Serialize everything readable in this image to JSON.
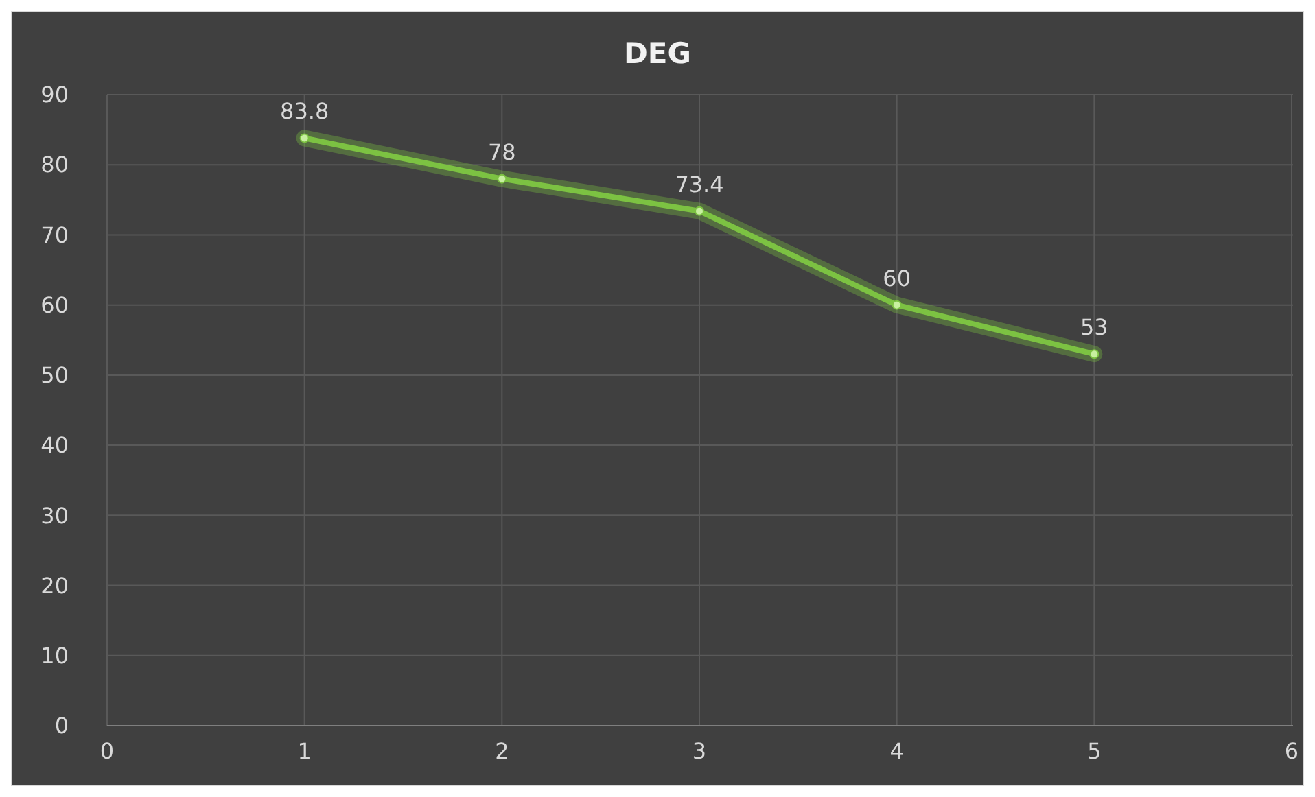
{
  "chart_data": {
    "type": "line",
    "title": "DEG",
    "x": [
      1,
      2,
      3,
      4,
      5
    ],
    "series": [
      {
        "color": "#7cc242",
        "values": [
          83.8,
          78,
          73.4,
          60,
          53
        ]
      }
    ],
    "xlim": [
      0,
      6
    ],
    "xticks": [
      0,
      1,
      2,
      3,
      4,
      5,
      6
    ],
    "ylim": [
      0,
      90
    ],
    "yticks": [
      0,
      10,
      20,
      30,
      40,
      50,
      60,
      70,
      80,
      90
    ],
    "grid": true,
    "marker": "circle",
    "line_style": "solid",
    "data_labels": true
  }
}
